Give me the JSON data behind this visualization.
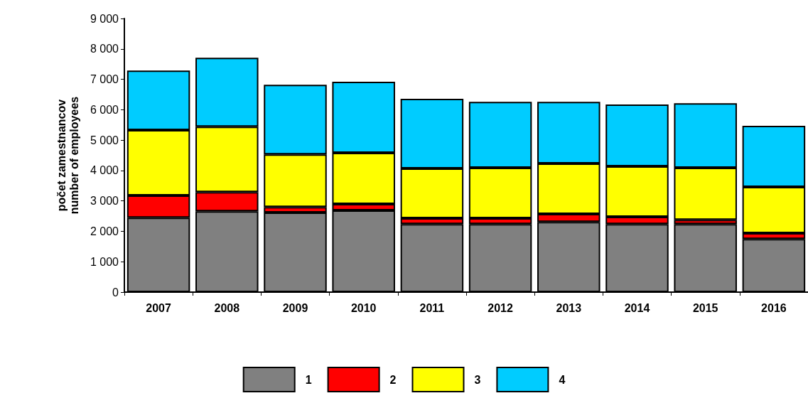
{
  "chart_data": {
    "type": "bar",
    "stacked": true,
    "ylabel": "počet zamestnancov\nnumber of employees",
    "categories": [
      "2007",
      "2008",
      "2009",
      "2010",
      "2011",
      "2012",
      "2013",
      "2014",
      "2015",
      "2016"
    ],
    "series": [
      {
        "name": "1",
        "color": "#808080",
        "values": [
          2450,
          2660,
          2620,
          2690,
          2240,
          2240,
          2310,
          2240,
          2240,
          1750
        ]
      },
      {
        "name": "2",
        "color": "#ff0000",
        "values": [
          730,
          630,
          180,
          210,
          190,
          190,
          260,
          240,
          140,
          190
        ]
      },
      {
        "name": "3",
        "color": "#ffff00",
        "values": [
          2150,
          2150,
          1730,
          1680,
          1640,
          1660,
          1660,
          1660,
          1710,
          1520
        ]
      },
      {
        "name": "4",
        "color": "#00ccff",
        "values": [
          1960,
          2270,
          2290,
          2340,
          2290,
          2170,
          2030,
          2030,
          2120,
          2010
        ]
      }
    ],
    "ylim": [
      0,
      9000
    ],
    "yticks": [
      0,
      1000,
      2000,
      3000,
      4000,
      5000,
      6000,
      7000,
      8000,
      9000
    ],
    "grid": false,
    "legend": "bottom"
  }
}
